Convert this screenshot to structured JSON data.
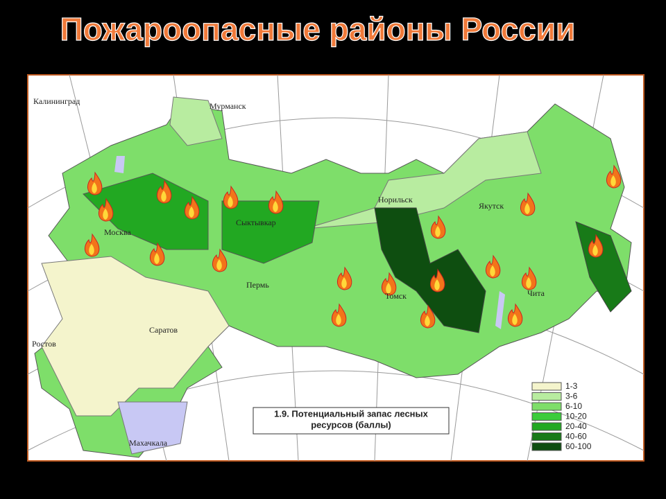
{
  "title": "Пожароопасные районы России",
  "map": {
    "cities": [
      "Калининград",
      "Мурманск",
      "Норильск",
      "Якутск",
      "Москва",
      "Сыктывкар",
      "Пермь",
      "Томск",
      "Чита",
      "Саратов",
      "Ростов",
      "Махачкала"
    ],
    "caption": [
      "1.9. Потенциальный запас лесных",
      "ресурсов (баллы)"
    ],
    "legend": [
      {
        "label": "1-3",
        "color": "#f4f4cc"
      },
      {
        "label": "3-6",
        "color": "#b8eca0"
      },
      {
        "label": "6-10",
        "color": "#7ede6a"
      },
      {
        "label": "10-20",
        "color": "#3ccc3c"
      },
      {
        "label": "20-40",
        "color": "#22a822"
      },
      {
        "label": "40-60",
        "color": "#187a18"
      },
      {
        "label": "60-100",
        "color": "#0e4e10"
      }
    ]
  }
}
